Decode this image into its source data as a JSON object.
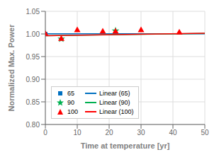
{
  "chart_data": {
    "type": "scatter",
    "xlabel": "Time at temperature [yr]",
    "ylabel": "Normalized Max. Power",
    "xlim": [
      0,
      50
    ],
    "ylim": [
      0.8,
      1.05
    ],
    "xticks": [
      0,
      10,
      20,
      30,
      40,
      50
    ],
    "yticks": [
      {
        "value": 0.8,
        "label": "0.80"
      },
      0.85,
      {
        "value": 0.9,
        "label": "0.90"
      },
      0.95,
      {
        "value": 1.0,
        "label": "1.00"
      },
      1.05
    ],
    "grid": true,
    "legend": "left",
    "series": [
      {
        "name": "65",
        "type": "scatter",
        "color": "#0070C0",
        "marker": "square",
        "x": [
          0
        ],
        "values": [
          1.0
        ]
      },
      {
        "name": "90",
        "type": "scatter",
        "color": "#00B050",
        "marker": "star",
        "x": [
          5,
          22
        ],
        "values": [
          0.989,
          1.007
        ]
      },
      {
        "name": "100",
        "type": "scatter",
        "color": "#FF0000",
        "marker": "triangle",
        "x": [
          0,
          5,
          10,
          18,
          22,
          30,
          42
        ],
        "values": [
          1.0,
          0.989,
          1.008,
          1.005,
          1.005,
          1.008,
          1.003
        ]
      },
      {
        "name": "Linear (65)",
        "type": "line",
        "color": "#0070C0",
        "line_style": "solid",
        "x": [
          0,
          50
        ],
        "values": [
          1.0002,
          1.0004
        ]
      },
      {
        "name": "Linear (90)",
        "type": "line",
        "color": "#00B050",
        "line_style": "solid",
        "x": [
          0,
          50
        ],
        "values": [
          0.996,
          1.001
        ]
      },
      {
        "name": "Linear (100)",
        "type": "line",
        "color": "#FF0000",
        "line_style": "solid",
        "x": [
          0,
          50
        ],
        "values": [
          0.996,
          1.0015
        ]
      }
    ]
  }
}
